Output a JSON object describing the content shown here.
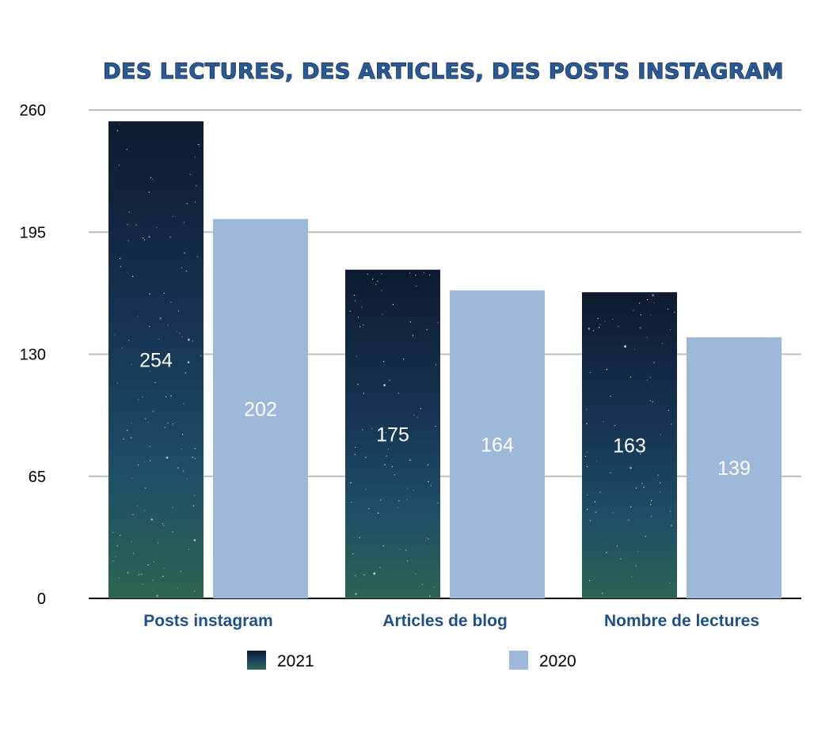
{
  "chart_data": {
    "type": "bar",
    "title": "DES LECTURES, DES ARTICLES, DES POSTS INSTAGRAM",
    "xlabel": "",
    "ylabel": "",
    "categories": [
      "Posts instagram",
      "Articles de blog",
      "Nombre de lectures"
    ],
    "series": [
      {
        "name": "2021",
        "values": [
          254,
          175,
          163
        ],
        "style": "night-sky gradient"
      },
      {
        "name": "2020",
        "values": [
          202,
          164,
          139
        ],
        "color": "#9db8d9"
      }
    ],
    "ylim": [
      0,
      260
    ],
    "yticks": [
      "0",
      "65",
      "130",
      "195",
      "260"
    ],
    "grid": true,
    "legend": "bottom",
    "colors": {
      "title": "#2a5a95",
      "category_labels": "#224f86",
      "series_2020": "#9db8d9",
      "sky_top": "#0e1b30",
      "sky_mid": "#1b4563",
      "sky_bottom": "#2c6552"
    }
  }
}
